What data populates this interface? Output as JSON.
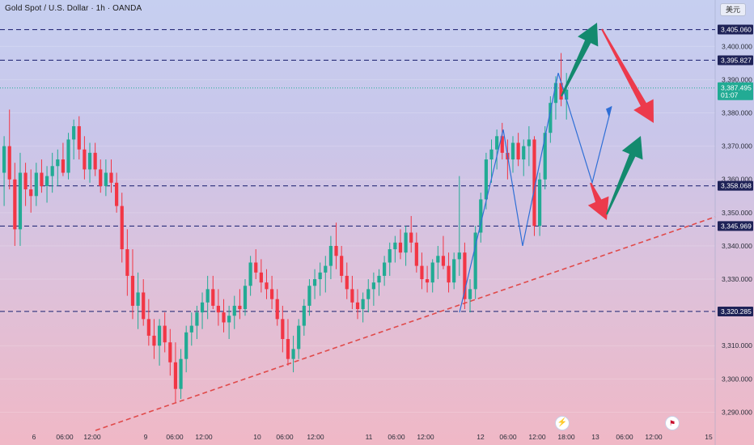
{
  "header": {
    "legend": "Gold Spot / U.S. Dollar · 1h · OANDA",
    "currency_button": "美元"
  },
  "icons": {
    "flash": "lightning-icon",
    "us_event": "us-flag-icon"
  },
  "colors": {
    "up": "#22ab94",
    "down": "#f23645",
    "level_line": "#2a2e7a",
    "trendline": "#e04a4a",
    "projection": "#2f6fd6",
    "arrow_up": "#138a6e",
    "arrow_down": "#ec3a4c",
    "price_tag": "#22ab94"
  },
  "chart_data": {
    "type": "candlestick",
    "symbol": "XAUUSD",
    "timeframe": "1h",
    "ylim": [
      3285,
      3412
    ],
    "y_ticks": [
      "3,290.000",
      "3,300.000",
      "3,310.000",
      "3,320.000",
      "3,330.000",
      "3,340.000",
      "3,350.000",
      "3,360.000",
      "3,370.000",
      "3,380.000",
      "3,390.000",
      "3,400.000"
    ],
    "x_labels": [
      "6",
      "06:00",
      "12:00",
      "9",
      "06:00",
      "12:00",
      "10",
      "06:00",
      "12:00",
      "11",
      "06:00",
      "12:00",
      "12",
      "06:00",
      "12:00",
      "18:00",
      "13",
      "06:00",
      "12:00",
      "15"
    ],
    "levels": [
      {
        "value": 3405.06,
        "label": "3,405.060"
      },
      {
        "value": 3395.827,
        "label": "3,395.827"
      },
      {
        "value": 3358.068,
        "label": "3,358.068"
      },
      {
        "value": 3345.969,
        "label": "3,345.969"
      },
      {
        "value": 3320.285,
        "label": "3,320.285"
      }
    ],
    "current_price": {
      "value": 3387.495,
      "label": "3,387.495",
      "countdown": "01:07"
    },
    "ohlc": [
      [
        3362,
        3373,
        3352,
        3370
      ],
      [
        3370,
        3381,
        3357,
        3360
      ],
      [
        3360,
        3365,
        3340,
        3345
      ],
      [
        3345,
        3368,
        3340,
        3362
      ],
      [
        3362,
        3365,
        3352,
        3357
      ],
      [
        3357,
        3363,
        3350,
        3355
      ],
      [
        3355,
        3365,
        3352,
        3362
      ],
      [
        3362,
        3366,
        3356,
        3358
      ],
      [
        3358,
        3364,
        3353,
        3361
      ],
      [
        3361,
        3368,
        3356,
        3364
      ],
      [
        3364,
        3369,
        3358,
        3366
      ],
      [
        3366,
        3371,
        3361,
        3362
      ],
      [
        3362,
        3374,
        3360,
        3372
      ],
      [
        3372,
        3378,
        3366,
        3376
      ],
      [
        3376,
        3379,
        3366,
        3369
      ],
      [
        3369,
        3373,
        3360,
        3363
      ],
      [
        3363,
        3371,
        3359,
        3368
      ],
      [
        3368,
        3371,
        3361,
        3363
      ],
      [
        3363,
        3366,
        3356,
        3358
      ],
      [
        3358,
        3366,
        3355,
        3362
      ],
      [
        3362,
        3366,
        3356,
        3359
      ],
      [
        3359,
        3362,
        3350,
        3352
      ],
      [
        3352,
        3356,
        3335,
        3339
      ],
      [
        3339,
        3345,
        3325,
        3331
      ],
      [
        3331,
        3339,
        3318,
        3322
      ],
      [
        3322,
        3332,
        3315,
        3326
      ],
      [
        3326,
        3330,
        3316,
        3318
      ],
      [
        3318,
        3324,
        3310,
        3313
      ],
      [
        3313,
        3318,
        3306,
        3310
      ],
      [
        3310,
        3318,
        3304,
        3316
      ],
      [
        3316,
        3320,
        3308,
        3311
      ],
      [
        3311,
        3315,
        3301,
        3305
      ],
      [
        3305,
        3311,
        3293,
        3297
      ],
      [
        3297,
        3309,
        3294,
        3306
      ],
      [
        3306,
        3316,
        3302,
        3314
      ],
      [
        3314,
        3320,
        3310,
        3316
      ],
      [
        3316,
        3322,
        3312,
        3320
      ],
      [
        3320,
        3326,
        3315,
        3323
      ],
      [
        3323,
        3331,
        3318,
        3327
      ],
      [
        3327,
        3331,
        3321,
        3322
      ],
      [
        3322,
        3327,
        3316,
        3320
      ],
      [
        3320,
        3324,
        3314,
        3317
      ],
      [
        3317,
        3322,
        3312,
        3319
      ],
      [
        3319,
        3325,
        3315,
        3322
      ],
      [
        3322,
        3327,
        3318,
        3321
      ],
      [
        3321,
        3330,
        3319,
        3328
      ],
      [
        3328,
        3337,
        3325,
        3335
      ],
      [
        3335,
        3339,
        3330,
        3332
      ],
      [
        3332,
        3336,
        3326,
        3329
      ],
      [
        3329,
        3333,
        3324,
        3327
      ],
      [
        3327,
        3331,
        3321,
        3324
      ],
      [
        3324,
        3327,
        3316,
        3318
      ],
      [
        3318,
        3322,
        3308,
        3312
      ],
      [
        3312,
        3318,
        3304,
        3306
      ],
      [
        3306,
        3313,
        3302,
        3309
      ],
      [
        3309,
        3318,
        3306,
        3316
      ],
      [
        3316,
        3324,
        3313,
        3322
      ],
      [
        3322,
        3330,
        3319,
        3328
      ],
      [
        3328,
        3333,
        3324,
        3330
      ],
      [
        3330,
        3335,
        3325,
        3332
      ],
      [
        3332,
        3337,
        3326,
        3334
      ],
      [
        3334,
        3343,
        3330,
        3340
      ],
      [
        3340,
        3347,
        3333,
        3337
      ],
      [
        3337,
        3340,
        3329,
        3331
      ],
      [
        3331,
        3335,
        3324,
        3327
      ],
      [
        3327,
        3331,
        3321,
        3323
      ],
      [
        3323,
        3327,
        3318,
        3321
      ],
      [
        3321,
        3326,
        3317,
        3324
      ],
      [
        3324,
        3330,
        3320,
        3327
      ],
      [
        3327,
        3332,
        3322,
        3329
      ],
      [
        3329,
        3333,
        3325,
        3331
      ],
      [
        3331,
        3337,
        3328,
        3335
      ],
      [
        3335,
        3341,
        3331,
        3339
      ],
      [
        3339,
        3343,
        3335,
        3341
      ],
      [
        3341,
        3345,
        3336,
        3338
      ],
      [
        3338,
        3346,
        3334,
        3344
      ],
      [
        3344,
        3349,
        3338,
        3341
      ],
      [
        3341,
        3344,
        3332,
        3334
      ],
      [
        3334,
        3338,
        3327,
        3330
      ],
      [
        3330,
        3334,
        3326,
        3329
      ],
      [
        3329,
        3336,
        3326,
        3335
      ],
      [
        3335,
        3340,
        3330,
        3337
      ],
      [
        3337,
        3343,
        3333,
        3334
      ],
      [
        3334,
        3338,
        3326,
        3329
      ],
      [
        3329,
        3338,
        3327,
        3336
      ],
      [
        3336,
        3361,
        3331,
        3338
      ],
      [
        3338,
        3341,
        3321,
        3324
      ],
      [
        3324,
        3330,
        3320,
        3327
      ],
      [
        3327,
        3346,
        3324,
        3344
      ],
      [
        3344,
        3356,
        3341,
        3354
      ],
      [
        3354,
        3368,
        3351,
        3366
      ],
      [
        3366,
        3372,
        3359,
        3369
      ],
      [
        3369,
        3375,
        3363,
        3373
      ],
      [
        3373,
        3377,
        3366,
        3368
      ],
      [
        3368,
        3372,
        3360,
        3366
      ],
      [
        3366,
        3373,
        3362,
        3371
      ],
      [
        3371,
        3374,
        3364,
        3366
      ],
      [
        3366,
        3372,
        3361,
        3370
      ],
      [
        3370,
        3376,
        3364,
        3372
      ],
      [
        3372,
        3373,
        3343,
        3346
      ],
      [
        3346,
        3362,
        3343,
        3360
      ],
      [
        3360,
        3376,
        3357,
        3374
      ],
      [
        3374,
        3385,
        3371,
        3383
      ],
      [
        3383,
        3391,
        3378,
        3389
      ],
      [
        3389,
        3398,
        3382,
        3384
      ],
      [
        3384,
        3392,
        3378,
        3387
      ]
    ],
    "x_positions_note": "candles sequential, ~6.6px apart starting at left edge"
  }
}
